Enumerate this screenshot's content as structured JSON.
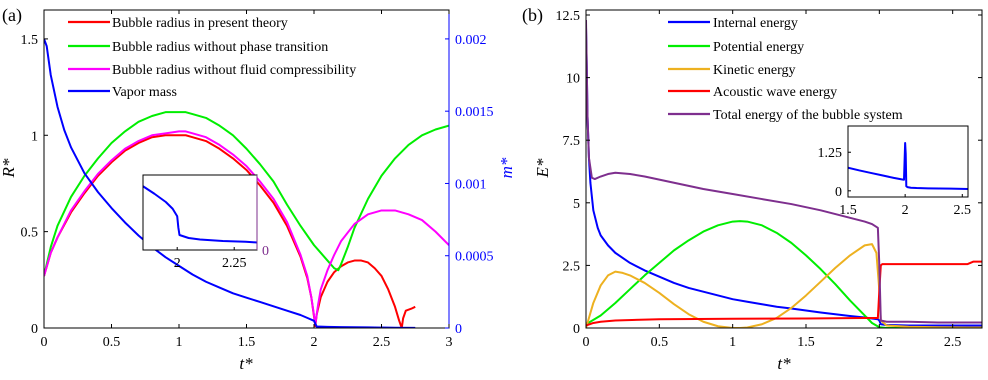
{
  "chart_data": [
    {
      "type": "line",
      "panel_label": "(a)",
      "xlabel": "t*",
      "ylabel_left": "R*",
      "ylabel_right": "m*",
      "xlim": [
        0,
        3
      ],
      "ylim_left": [
        0,
        1.65
      ],
      "ylim_right": [
        0,
        0.0022
      ],
      "xticks": [
        "0",
        "0.5",
        "1",
        "1.5",
        "2",
        "2.5",
        "3"
      ],
      "yticks_left": [
        "0",
        "0.5",
        "1",
        "1.5"
      ],
      "yticks_right": [
        "0",
        "0.0005",
        "0.001",
        "0.0015",
        "0.002"
      ],
      "right_axis_color": "#0000ff",
      "legend_position": "top-center",
      "series": [
        {
          "name": "Bubble radius in present theory",
          "color": "#ff0000",
          "axis": "left",
          "x": [
            0,
            0.05,
            0.1,
            0.2,
            0.3,
            0.4,
            0.5,
            0.6,
            0.7,
            0.8,
            0.9,
            1.0,
            1.05,
            1.1,
            1.2,
            1.3,
            1.4,
            1.5,
            1.6,
            1.7,
            1.8,
            1.9,
            1.95,
            1.98,
            2.01,
            2.02,
            2.05,
            2.1,
            2.15,
            2.2,
            2.25,
            2.3,
            2.35,
            2.4,
            2.45,
            2.5,
            2.55,
            2.6,
            2.63,
            2.65,
            2.66,
            2.68,
            2.72,
            2.75
          ],
          "y": [
            0.27,
            0.39,
            0.47,
            0.6,
            0.7,
            0.79,
            0.86,
            0.92,
            0.96,
            0.99,
            1.0,
            1.0,
            1.0,
            0.99,
            0.97,
            0.93,
            0.88,
            0.82,
            0.74,
            0.65,
            0.53,
            0.37,
            0.26,
            0.16,
            0.01,
            0.07,
            0.16,
            0.24,
            0.29,
            0.32,
            0.34,
            0.35,
            0.35,
            0.34,
            0.31,
            0.27,
            0.2,
            0.11,
            0.04,
            0.0,
            0.05,
            0.09,
            0.1,
            0.11
          ]
        },
        {
          "name": "Bubble radius without phase transition",
          "color": "#00ee00",
          "axis": "left",
          "x": [
            0,
            0.05,
            0.1,
            0.2,
            0.3,
            0.4,
            0.5,
            0.6,
            0.7,
            0.8,
            0.9,
            1.0,
            1.05,
            1.1,
            1.2,
            1.3,
            1.4,
            1.5,
            1.6,
            1.7,
            1.8,
            1.9,
            2.0,
            2.05,
            2.1,
            2.15,
            2.18,
            2.2,
            2.25,
            2.3,
            2.4,
            2.5,
            2.6,
            2.7,
            2.8,
            2.9,
            3.0
          ],
          "y": [
            0.27,
            0.42,
            0.53,
            0.68,
            0.79,
            0.88,
            0.96,
            1.02,
            1.07,
            1.1,
            1.12,
            1.12,
            1.12,
            1.11,
            1.09,
            1.05,
            1.0,
            0.93,
            0.85,
            0.76,
            0.64,
            0.53,
            0.43,
            0.39,
            0.35,
            0.31,
            0.3,
            0.33,
            0.42,
            0.52,
            0.67,
            0.79,
            0.88,
            0.95,
            1.0,
            1.03,
            1.05
          ]
        },
        {
          "name": "Bubble radius without fluid compressibility",
          "color": "#ff00ff",
          "axis": "left",
          "x": [
            0,
            0.05,
            0.1,
            0.2,
            0.3,
            0.4,
            0.5,
            0.6,
            0.7,
            0.8,
            0.9,
            1.0,
            1.05,
            1.1,
            1.2,
            1.3,
            1.4,
            1.5,
            1.6,
            1.7,
            1.8,
            1.9,
            1.95,
            1.98,
            2.01,
            2.03,
            2.05,
            2.1,
            2.15,
            2.2,
            2.3,
            2.4,
            2.5,
            2.6,
            2.7,
            2.8,
            2.9,
            3.0
          ],
          "y": [
            0.27,
            0.39,
            0.47,
            0.61,
            0.71,
            0.8,
            0.87,
            0.93,
            0.97,
            1.0,
            1.01,
            1.02,
            1.02,
            1.01,
            0.99,
            0.95,
            0.9,
            0.84,
            0.76,
            0.67,
            0.55,
            0.38,
            0.27,
            0.16,
            0.02,
            0.12,
            0.2,
            0.3,
            0.38,
            0.45,
            0.54,
            0.59,
            0.61,
            0.61,
            0.59,
            0.56,
            0.5,
            0.43
          ]
        },
        {
          "name": "Vapor mass",
          "color": "#0000ff",
          "axis": "right",
          "x": [
            0,
            0.02,
            0.05,
            0.1,
            0.15,
            0.2,
            0.3,
            0.4,
            0.5,
            0.6,
            0.7,
            0.8,
            0.9,
            1.0,
            1.1,
            1.2,
            1.3,
            1.4,
            1.5,
            1.6,
            1.7,
            1.8,
            1.9,
            1.95,
            2.0,
            2.01,
            2.02,
            2.1,
            2.2,
            2.4,
            2.6,
            2.75
          ],
          "y": [
            0.002,
            0.00195,
            0.00175,
            0.00153,
            0.00137,
            0.00125,
            0.00107,
            0.00094,
            0.00083,
            0.00073,
            0.00064,
            0.00056,
            0.00049,
            0.00043,
            0.00037,
            0.00032,
            0.00028,
            0.00024,
            0.00021,
            0.00018,
            0.00015,
            0.00012,
            9e-05,
            7e-05,
            5e-05,
            3e-05,
            1e-05,
            8e-06,
            6e-06,
            4e-06,
            2e-06,
            1e-06
          ]
        }
      ],
      "inset": {
        "xlim": [
          1.85,
          2.35
        ],
        "xticks": [
          "2",
          "2.25"
        ],
        "yticks_right": [
          "0"
        ],
        "right_tick_color": "#7e2f8e",
        "series_color": "#0000ff",
        "x": [
          1.85,
          1.9,
          1.95,
          1.98,
          2.0,
          2.005,
          2.01,
          2.05,
          2.1,
          2.2,
          2.3,
          2.35
        ],
        "y": [
          0.85,
          0.75,
          0.64,
          0.55,
          0.45,
          0.3,
          0.2,
          0.16,
          0.14,
          0.12,
          0.11,
          0.1
        ]
      }
    },
    {
      "type": "line",
      "panel_label": "(b)",
      "xlabel": "t*",
      "ylabel": "E*",
      "xlim": [
        0,
        2.7
      ],
      "ylim": [
        0,
        12.7
      ],
      "xticks": [
        "0",
        "0.5",
        "1",
        "1.5",
        "2",
        "2.5"
      ],
      "yticks": [
        "0",
        "2.5",
        "5",
        "7.5",
        "10",
        "12.5"
      ],
      "legend_position": "top-center",
      "series": [
        {
          "name": "Internal energy",
          "color": "#0000ff",
          "x": [
            0,
            0.005,
            0.01,
            0.02,
            0.03,
            0.05,
            0.08,
            0.1,
            0.15,
            0.2,
            0.3,
            0.4,
            0.5,
            0.6,
            0.7,
            0.8,
            0.9,
            1.0,
            1.1,
            1.2,
            1.3,
            1.4,
            1.5,
            1.6,
            1.7,
            1.8,
            1.9,
            1.95,
            1.99,
            2.0,
            2.01,
            2.05,
            2.2,
            2.4,
            2.6,
            2.7
          ],
          "y": [
            12.0,
            10.5,
            8.5,
            6.8,
            5.8,
            4.7,
            4.0,
            3.7,
            3.3,
            3.0,
            2.6,
            2.3,
            2.05,
            1.8,
            1.6,
            1.45,
            1.3,
            1.15,
            1.05,
            0.95,
            0.85,
            0.78,
            0.7,
            0.62,
            0.55,
            0.48,
            0.42,
            0.38,
            0.35,
            0.3,
            0.15,
            0.12,
            0.1,
            0.1,
            0.1,
            0.1
          ]
        },
        {
          "name": "Potential energy",
          "color": "#00ee00",
          "x": [
            0,
            0.1,
            0.2,
            0.3,
            0.4,
            0.5,
            0.6,
            0.7,
            0.8,
            0.9,
            1.0,
            1.05,
            1.1,
            1.2,
            1.3,
            1.4,
            1.5,
            1.6,
            1.7,
            1.8,
            1.9,
            1.95,
            2.0,
            2.05,
            2.2,
            2.4,
            2.6,
            2.7
          ],
          "y": [
            0.15,
            0.5,
            1.0,
            1.55,
            2.1,
            2.6,
            3.1,
            3.5,
            3.85,
            4.1,
            4.25,
            4.27,
            4.25,
            4.1,
            3.8,
            3.4,
            2.9,
            2.35,
            1.75,
            1.1,
            0.5,
            0.2,
            0.03,
            0.0,
            0.0,
            0.0,
            0.0,
            0.0
          ]
        },
        {
          "name": "Kinetic energy",
          "color": "#edb120",
          "x": [
            0,
            0.05,
            0.1,
            0.15,
            0.2,
            0.25,
            0.3,
            0.4,
            0.5,
            0.6,
            0.7,
            0.8,
            0.9,
            1.0,
            1.05,
            1.1,
            1.2,
            1.3,
            1.4,
            1.5,
            1.6,
            1.7,
            1.8,
            1.9,
            1.95,
            1.98,
            2.0,
            2.01,
            2.05,
            2.2,
            2.4,
            2.6,
            2.7
          ],
          "y": [
            0.0,
            1.0,
            1.7,
            2.1,
            2.25,
            2.2,
            2.1,
            1.8,
            1.4,
            0.95,
            0.55,
            0.25,
            0.07,
            0.0,
            0.0,
            0.02,
            0.15,
            0.4,
            0.8,
            1.3,
            1.85,
            2.4,
            2.9,
            3.3,
            3.35,
            3.0,
            1.5,
            0.3,
            0.1,
            0.05,
            0.03,
            0.02,
            0.02
          ]
        },
        {
          "name": "Acoustic wave energy",
          "color": "#ff0000",
          "x": [
            0,
            0.05,
            0.1,
            0.2,
            0.5,
            1.0,
            1.5,
            1.9,
            1.99,
            2.0,
            2.01,
            2.02,
            2.05,
            2.2,
            2.4,
            2.6,
            2.62,
            2.64,
            2.7
          ],
          "y": [
            0.1,
            0.2,
            0.25,
            0.3,
            0.35,
            0.37,
            0.38,
            0.4,
            0.4,
            1.5,
            2.5,
            2.55,
            2.55,
            2.55,
            2.55,
            2.55,
            2.6,
            2.65,
            2.65
          ]
        },
        {
          "name": "Total energy of the bubble system",
          "color": "#7e2f8e",
          "x": [
            0,
            0.005,
            0.01,
            0.02,
            0.04,
            0.06,
            0.1,
            0.15,
            0.2,
            0.3,
            0.4,
            0.6,
            0.8,
            1.0,
            1.2,
            1.4,
            1.6,
            1.8,
            1.9,
            1.95,
            1.99,
            2.0,
            2.01,
            2.05,
            2.2,
            2.4,
            2.6,
            2.7
          ],
          "y": [
            12.3,
            10.5,
            8.5,
            6.8,
            6.0,
            5.95,
            6.05,
            6.15,
            6.2,
            6.15,
            6.05,
            5.8,
            5.55,
            5.35,
            5.15,
            4.95,
            4.7,
            4.4,
            4.25,
            4.15,
            4.0,
            2.5,
            0.3,
            0.25,
            0.25,
            0.22,
            0.22,
            0.22
          ]
        }
      ],
      "inset": {
        "xlim": [
          1.5,
          2.55
        ],
        "ylim": [
          -0.2,
          2.1
        ],
        "xticks": [
          "1.5",
          "2",
          "2.5"
        ],
        "yticks": [
          "0",
          "1.25"
        ],
        "series_color": "#0000ff",
        "x": [
          1.5,
          1.6,
          1.7,
          1.8,
          1.9,
          1.97,
          1.99,
          2.0,
          2.005,
          2.01,
          2.02,
          2.05,
          2.1,
          2.2,
          2.4,
          2.55
        ],
        "y": [
          0.75,
          0.66,
          0.58,
          0.5,
          0.42,
          0.37,
          0.36,
          1.55,
          1.2,
          0.15,
          0.12,
          0.1,
          0.09,
          0.08,
          0.07,
          0.06
        ]
      }
    }
  ]
}
